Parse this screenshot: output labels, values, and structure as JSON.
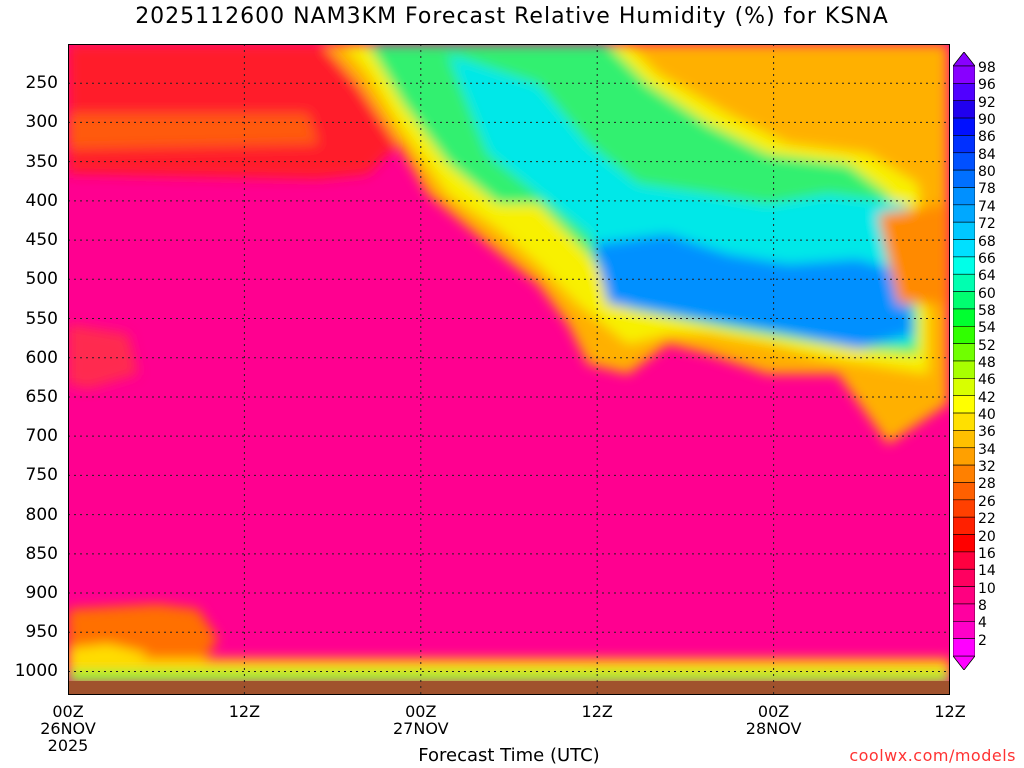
{
  "chart_data": {
    "type": "heatmap",
    "title": "2025112600 NAM3KM Forecast Relative Humidity (%) for KSNA",
    "xlabel": "Forecast Time (UTC)",
    "ylabel": "",
    "credit": "coolwx.com/models",
    "x_range_hours": [
      0,
      60
    ],
    "y_range_mb": [
      200,
      1030
    ],
    "y_ticks": [
      {
        "label": "250",
        "value": 250
      },
      {
        "label": "300",
        "value": 300
      },
      {
        "label": "350",
        "value": 350
      },
      {
        "label": "400",
        "value": 400
      },
      {
        "label": "450",
        "value": 450
      },
      {
        "label": "500",
        "value": 500
      },
      {
        "label": "550",
        "value": 550
      },
      {
        "label": "600",
        "value": 600
      },
      {
        "label": "650",
        "value": 650
      },
      {
        "label": "700",
        "value": 700
      },
      {
        "label": "750",
        "value": 750
      },
      {
        "label": "800",
        "value": 800
      },
      {
        "label": "850",
        "value": 850
      },
      {
        "label": "900",
        "value": 900
      },
      {
        "label": "950",
        "value": 950
      },
      {
        "label": "1000",
        "value": 1000
      }
    ],
    "x_ticks": [
      {
        "hour": 0,
        "label": "00Z",
        "sub1": "26NOV",
        "sub2": "2025"
      },
      {
        "hour": 12,
        "label": "12Z",
        "sub1": "",
        "sub2": ""
      },
      {
        "hour": 24,
        "label": "00Z",
        "sub1": "27NOV",
        "sub2": ""
      },
      {
        "hour": 36,
        "label": "12Z",
        "sub1": "",
        "sub2": ""
      },
      {
        "hour": 48,
        "label": "00Z",
        "sub1": "28NOV",
        "sub2": ""
      },
      {
        "hour": 60,
        "label": "12Z",
        "sub1": "",
        "sub2": ""
      }
    ],
    "colorbar_labels": [
      "98",
      "96",
      "92",
      "90",
      "86",
      "84",
      "80",
      "78",
      "74",
      "72",
      "68",
      "66",
      "64",
      "60",
      "58",
      "54",
      "52",
      "48",
      "46",
      "42",
      "40",
      "36",
      "34",
      "32",
      "28",
      "26",
      "22",
      "20",
      "16",
      "14",
      "10",
      "8",
      "4",
      "2"
    ],
    "colorbar_colors": [
      "#8800ff",
      "#5000ff",
      "#2000ee",
      "#0010ff",
      "#0030ff",
      "#0050ff",
      "#0070ff",
      "#0090ff",
      "#00a8ff",
      "#00c8ff",
      "#00e0ff",
      "#00ffe8",
      "#00ffb0",
      "#00ff70",
      "#00ff30",
      "#30ff00",
      "#70ff00",
      "#a8ff00",
      "#d8ff00",
      "#ffff00",
      "#ffe000",
      "#ffc000",
      "#ffa000",
      "#ff8000",
      "#ff6000",
      "#ff4000",
      "#ff2000",
      "#ff0000",
      "#ff0040",
      "#ff0060",
      "#ff0080",
      "#ff00a0",
      "#ff00c8",
      "#ff00ff"
    ],
    "field_summary": [
      {
        "region": "upper levels 200-300 mb, 00Z 26NOV - 18Z 26NOV",
        "rh_percent": 20
      },
      {
        "region": "mid levels 300-850 mb, entire period",
        "rh_percent": 6
      },
      {
        "region": "moist tongue 200-330 mb, ~21Z 26NOV - 12Z 27NOV",
        "rh_percent": 55
      },
      {
        "region": "moist core 330-450 mb, 12Z 27NOV - 06Z 28NOV",
        "rh_percent": 76
      },
      {
        "region": "boundary layer 850-1000 mb, 00Z-06Z 26NOV",
        "rh_percent": 30
      },
      {
        "region": "surface layer near 1000 mb",
        "rh_percent": 45
      }
    ]
  }
}
